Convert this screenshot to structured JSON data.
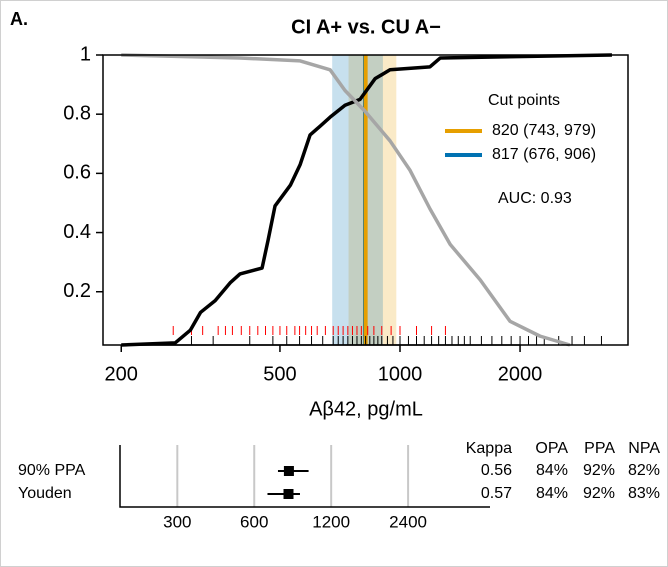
{
  "chart_data": [
    {
      "type": "line",
      "panel_label": "A.",
      "title": "CI A+ vs. CU A−",
      "xlabel": "Aβ42, pg/mL",
      "xscale": "log",
      "xlim": [
        180,
        3730
      ],
      "ylim": [
        0.02,
        1.0
      ],
      "xticks": [
        200,
        500,
        1000,
        2000
      ],
      "yticks": [
        0.2,
        0.4,
        0.6,
        0.8,
        1.0
      ],
      "series": [
        {
          "color": "#000000",
          "x": [
            200,
            273,
            298,
            316,
            344,
            375,
            397,
            451,
            467,
            486,
            531,
            562,
            595,
            631,
            668,
            728,
            794,
            866,
            944,
            1189,
            1262,
            3400
          ],
          "values": [
            0.02,
            0.027,
            0.07,
            0.13,
            0.17,
            0.23,
            0.26,
            0.28,
            0.375,
            0.49,
            0.56,
            0.63,
            0.73,
            0.76,
            0.79,
            0.83,
            0.85,
            0.92,
            0.95,
            0.96,
            0.99,
            1.0
          ]
        },
        {
          "color": "#a6a6a6",
          "x": [
            200,
            397,
            562,
            668,
            728,
            817,
            944,
            1060,
            1189,
            1336,
            1589,
            1888,
            2244,
            2667
          ],
          "values": [
            1.0,
            0.99,
            0.98,
            0.95,
            0.88,
            0.81,
            0.71,
            0.61,
            0.48,
            0.36,
            0.24,
            0.1,
            0.05,
            0.02
          ]
        }
      ],
      "cut_points": {
        "title": "Cut points",
        "items": [
          {
            "label": "820 (743, 979)",
            "value": 820,
            "lower": 743,
            "upper": 979,
            "color": "#e69f00"
          },
          {
            "label": "817 (676, 906)",
            "value": 817,
            "lower": 676,
            "upper": 906,
            "color": "#0072b2"
          }
        ]
      },
      "annotation": "AUC: 0.93",
      "rug": [
        {
          "color": "#ff0000",
          "values": [
            270,
            300,
            320,
            350,
            365,
            380,
            400,
            420,
            440,
            460,
            480,
            500,
            520,
            545,
            560,
            580,
            600,
            620,
            650,
            680,
            700,
            720,
            740,
            760,
            780,
            800,
            830,
            860,
            900,
            950,
            1000,
            1100,
            1200,
            1300
          ]
        },
        {
          "color": "#000000",
          "values": [
            300,
            340,
            420,
            480,
            520,
            560,
            600,
            640,
            680,
            700,
            720,
            740,
            760,
            780,
            800,
            820,
            840,
            860,
            880,
            900,
            930,
            960,
            1000,
            1050,
            1100,
            1150,
            1200,
            1250,
            1300,
            1350,
            1400,
            1450,
            1500,
            1600,
            1700,
            1800,
            1900,
            2000,
            2100,
            2200,
            2300,
            2500,
            2700,
            2900,
            3200
          ]
        }
      ]
    },
    {
      "type": "forest",
      "xscale": "log",
      "xlim": [
        179,
        5020
      ],
      "xticks": [
        300,
        600,
        1200,
        2400
      ],
      "grid": true,
      "categories": [
        "90% PPA",
        "Youden"
      ],
      "values": [
        820,
        817
      ],
      "lower": [
        743,
        676
      ],
      "upper": [
        979,
        906
      ],
      "table": {
        "columns": [
          "Kappa",
          "OPA",
          "PPA",
          "NPA"
        ],
        "rows": [
          [
            "0.56",
            "84%",
            "92%",
            "82%"
          ],
          [
            "0.57",
            "84%",
            "92%",
            "83%"
          ]
        ]
      }
    }
  ]
}
